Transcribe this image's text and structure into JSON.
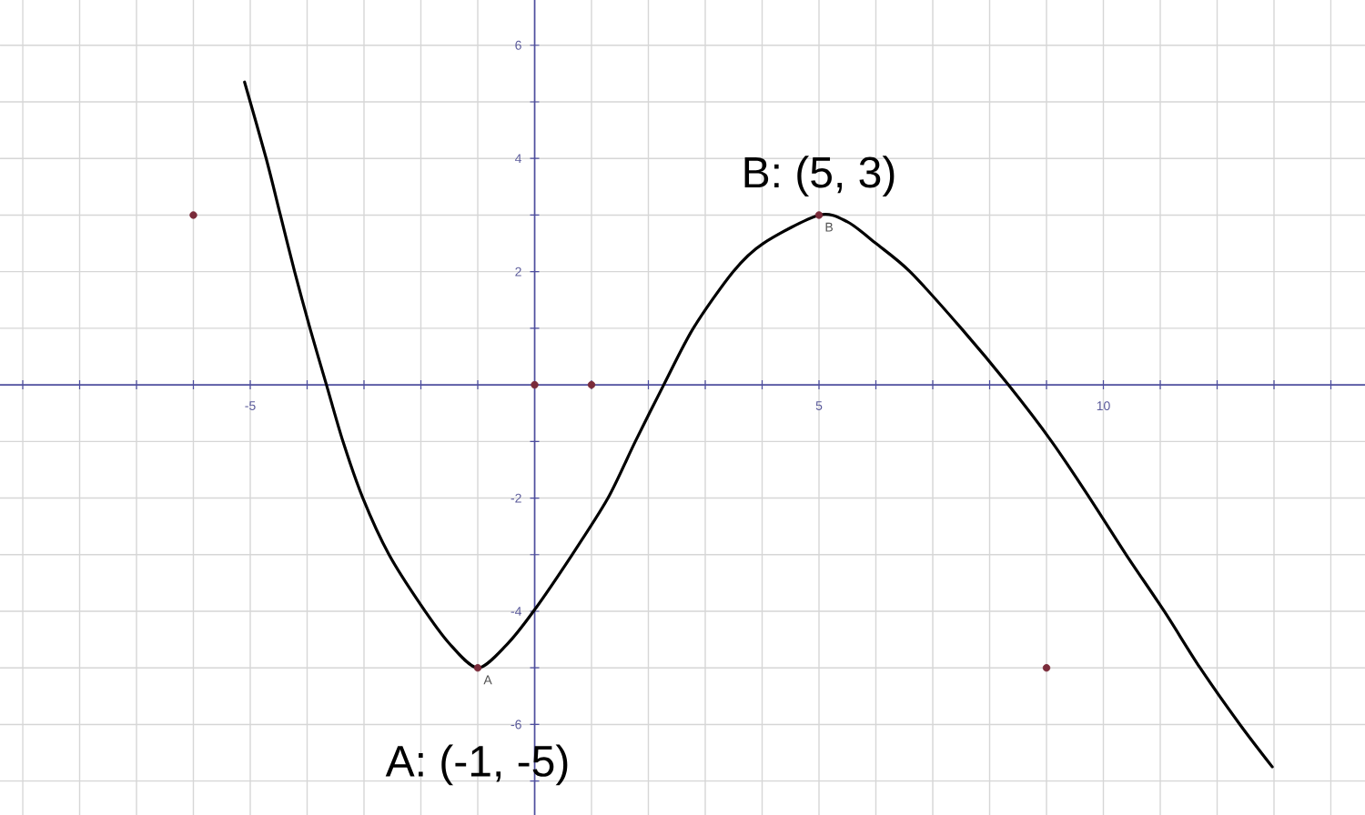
{
  "chart_data": {
    "type": "line",
    "series": [
      {
        "color": "#000000",
        "x": [
          -5.1,
          -4.72,
          -4.47,
          -4.22,
          -3.95,
          -3.66,
          -3.37,
          -3.02,
          -2.56,
          -2,
          -1.5,
          -1,
          -0.5,
          -0.02,
          0.66,
          1.29,
          1.77,
          2.27,
          2.79,
          3.49,
          4.02,
          5,
          5.5,
          6,
          6.6,
          7.5,
          8.33,
          9.09,
          9.76,
          10.4,
          11.07,
          11.7,
          12.4,
          12.97
        ],
        "values": [
          5.35,
          4,
          3,
          2,
          1,
          0,
          -1,
          -2,
          -3,
          -3.89,
          -4.57,
          -5,
          -4.6,
          -4,
          -3,
          -2,
          -1,
          0,
          1,
          2,
          2.5,
          3,
          2.88,
          2.5,
          2,
          1,
          0,
          -1,
          -2,
          -3,
          -4,
          -5,
          -6,
          -6.75
        ]
      },
      {
        "type": "scatter",
        "name": "A",
        "color": "#7a2b3a",
        "marker": "circle",
        "x": [
          -1
        ],
        "values": [
          -5
        ]
      },
      {
        "type": "scatter",
        "name": "B",
        "color": "#7a2b3a",
        "marker": "circle",
        "x": [
          5
        ],
        "values": [
          3
        ]
      },
      {
        "type": "scatter",
        "color": "#7a2b3a",
        "marker": "circle",
        "x": [
          -6,
          0,
          1,
          9
        ],
        "values": [
          3,
          0,
          0,
          -5
        ]
      }
    ],
    "annotations": [
      {
        "text": "B: (5, 3)",
        "x": 5,
        "y": 3
      },
      {
        "text": "A: (-1, -5)",
        "x": -1,
        "y": -5
      }
    ],
    "xlim": [
      -9.4,
      14.6
    ],
    "ylim": [
      -7.6,
      6.8
    ],
    "xticks": [
      {
        "value": -9,
        "label": null
      },
      {
        "value": -8,
        "label": null
      },
      {
        "value": -7,
        "label": null
      },
      {
        "value": -6,
        "label": null
      },
      -5,
      {
        "value": -4,
        "label": null
      },
      {
        "value": -3,
        "label": null
      },
      {
        "value": -2,
        "label": null
      },
      {
        "value": -1,
        "label": null
      },
      {
        "value": 0,
        "label": null
      },
      {
        "value": 1,
        "label": null
      },
      {
        "value": 2,
        "label": null
      },
      {
        "value": 3,
        "label": null
      },
      {
        "value": 4,
        "label": null
      },
      5,
      {
        "value": 6,
        "label": null
      },
      {
        "value": 7,
        "label": null
      },
      {
        "value": 8,
        "label": null
      },
      {
        "value": 9,
        "label": null
      },
      10,
      {
        "value": 11,
        "label": null
      },
      {
        "value": 12,
        "label": null
      },
      {
        "value": 13,
        "label": null
      },
      {
        "value": 14,
        "label": null
      }
    ],
    "yticks": [
      {
        "value": -7,
        "label": null
      },
      -6,
      {
        "value": -5,
        "label": null
      },
      -4,
      {
        "value": -3,
        "label": null
      },
      -2,
      {
        "value": -1,
        "label": null
      },
      {
        "value": 0,
        "label": null
      },
      {
        "value": 1,
        "label": null
      },
      2,
      {
        "value": 3,
        "label": null
      },
      4,
      {
        "value": 5,
        "label": null
      },
      6
    ],
    "grid": true
  }
}
